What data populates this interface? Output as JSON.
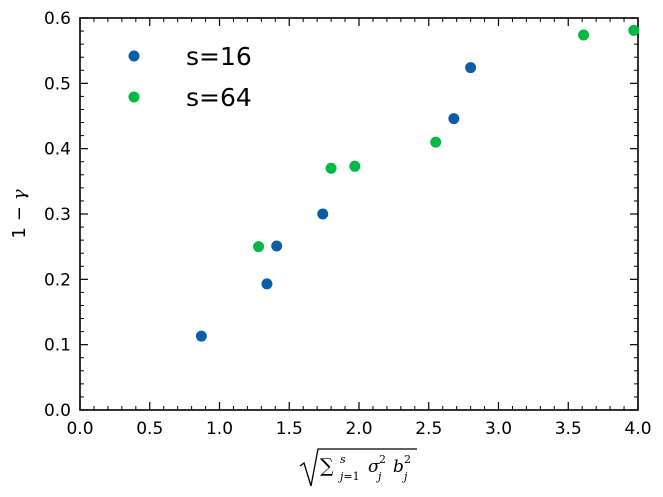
{
  "chart_data": {
    "type": "scatter",
    "xlabel": "√(∑ j=1 s σj² bj²)",
    "ylabel": "1 − γ",
    "xlim": [
      0.0,
      4.0
    ],
    "ylim": [
      0.0,
      0.6
    ],
    "x_ticks": [
      "0.0",
      "0.5",
      "1.0",
      "1.5",
      "2.0",
      "2.5",
      "3.0",
      "3.5",
      "4.0"
    ],
    "y_ticks": [
      "0.0",
      "0.1",
      "0.2",
      "0.3",
      "0.4",
      "0.5",
      "0.6"
    ],
    "grid": false,
    "legend_position": "top-left",
    "series": [
      {
        "name": "s=16",
        "color": "#0c5da5",
        "points": [
          {
            "x": 0.87,
            "y": 0.113
          },
          {
            "x": 1.34,
            "y": 0.193
          },
          {
            "x": 1.41,
            "y": 0.251
          },
          {
            "x": 1.74,
            "y": 0.3
          },
          {
            "x": 2.68,
            "y": 0.446
          },
          {
            "x": 2.8,
            "y": 0.524
          }
        ]
      },
      {
        "name": "s=64",
        "color": "#00b945",
        "points": [
          {
            "x": 1.28,
            "y": 0.25
          },
          {
            "x": 1.8,
            "y": 0.37
          },
          {
            "x": 1.97,
            "y": 0.373
          },
          {
            "x": 2.55,
            "y": 0.41
          },
          {
            "x": 3.61,
            "y": 0.574
          },
          {
            "x": 3.97,
            "y": 0.581
          }
        ]
      }
    ]
  }
}
